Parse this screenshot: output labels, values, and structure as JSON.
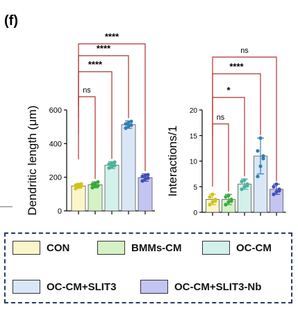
{
  "panel_label": "(f)",
  "legend": [
    {
      "label": "CON",
      "color": "#fbf6c9"
    },
    {
      "label": "BMMs-CM",
      "color": "#d4f2c6"
    },
    {
      "label": "OC-CM",
      "color": "#d2f1ea"
    },
    {
      "label": "OC-CM+SLIT3",
      "color": "#d9e6f6"
    },
    {
      "label": "OC-CM+SLIT3-Nb",
      "color": "#c4c4f2"
    }
  ],
  "point_colors": [
    "#d2c21a",
    "#38a83c",
    "#4bb19c",
    "#2f7fb0",
    "#3f4fb4"
  ],
  "chart_data": [
    {
      "type": "bar",
      "ylabel": "Dendritic length  (μm)",
      "ylim": [
        0,
        600
      ],
      "yticks": [
        "0",
        "200",
        "400",
        "600"
      ],
      "categories": [
        "CON",
        "BMMs-CM",
        "OC-CM",
        "OC-CM+SLIT3",
        "OC-CM+SLIT3-Nb"
      ],
      "values": [
        148,
        155,
        272,
        513,
        198
      ],
      "errors": [
        14,
        18,
        20,
        22,
        22
      ],
      "points": [
        [
          133,
          142,
          148,
          152,
          158,
          160
        ],
        [
          138,
          145,
          150,
          158,
          165,
          172
        ],
        [
          255,
          262,
          270,
          278,
          285,
          290
        ],
        [
          492,
          503,
          510,
          517,
          525,
          532
        ],
        [
          178,
          188,
          195,
          205,
          210,
          215
        ]
      ],
      "comparisons": [
        {
          "label": "ns",
          "from": 0,
          "to": 1
        },
        {
          "label": "****",
          "from": 0,
          "to": 2
        },
        {
          "label": "****",
          "from": 0,
          "to": 3
        },
        {
          "label": "****",
          "from": 0,
          "to": 4
        }
      ]
    },
    {
      "type": "bar",
      "ylabel": "Interactions/1",
      "ylim": [
        0,
        20
      ],
      "yticks": [
        "0",
        "5",
        "10",
        "15",
        "20"
      ],
      "categories": [
        "CON",
        "BMMs-CM",
        "OC-CM",
        "OC-CM+SLIT3",
        "OC-CM+SLIT3-Nb"
      ],
      "values": [
        2.5,
        2.5,
        5.5,
        11,
        4.5
      ],
      "errors": [
        1,
        1,
        1,
        3.5,
        1
      ],
      "points": [
        [
          1.5,
          2,
          2.5,
          3,
          3.5,
          2.2
        ],
        [
          1.5,
          2,
          2.5,
          3,
          3.3,
          2.2
        ],
        [
          4.5,
          5,
          5.5,
          6,
          6.3,
          5.2
        ],
        [
          7,
          9,
          10.5,
          12,
          14.5,
          11
        ],
        [
          3.5,
          4,
          4.5,
          5,
          5.5,
          4.2
        ]
      ],
      "comparisons": [
        {
          "label": "ns",
          "from": 0,
          "to": 1
        },
        {
          "label": "*",
          "from": 0,
          "to": 2
        },
        {
          "label": "****",
          "from": 0,
          "to": 3
        },
        {
          "label": "ns",
          "from": 0,
          "to": 4
        }
      ]
    }
  ]
}
